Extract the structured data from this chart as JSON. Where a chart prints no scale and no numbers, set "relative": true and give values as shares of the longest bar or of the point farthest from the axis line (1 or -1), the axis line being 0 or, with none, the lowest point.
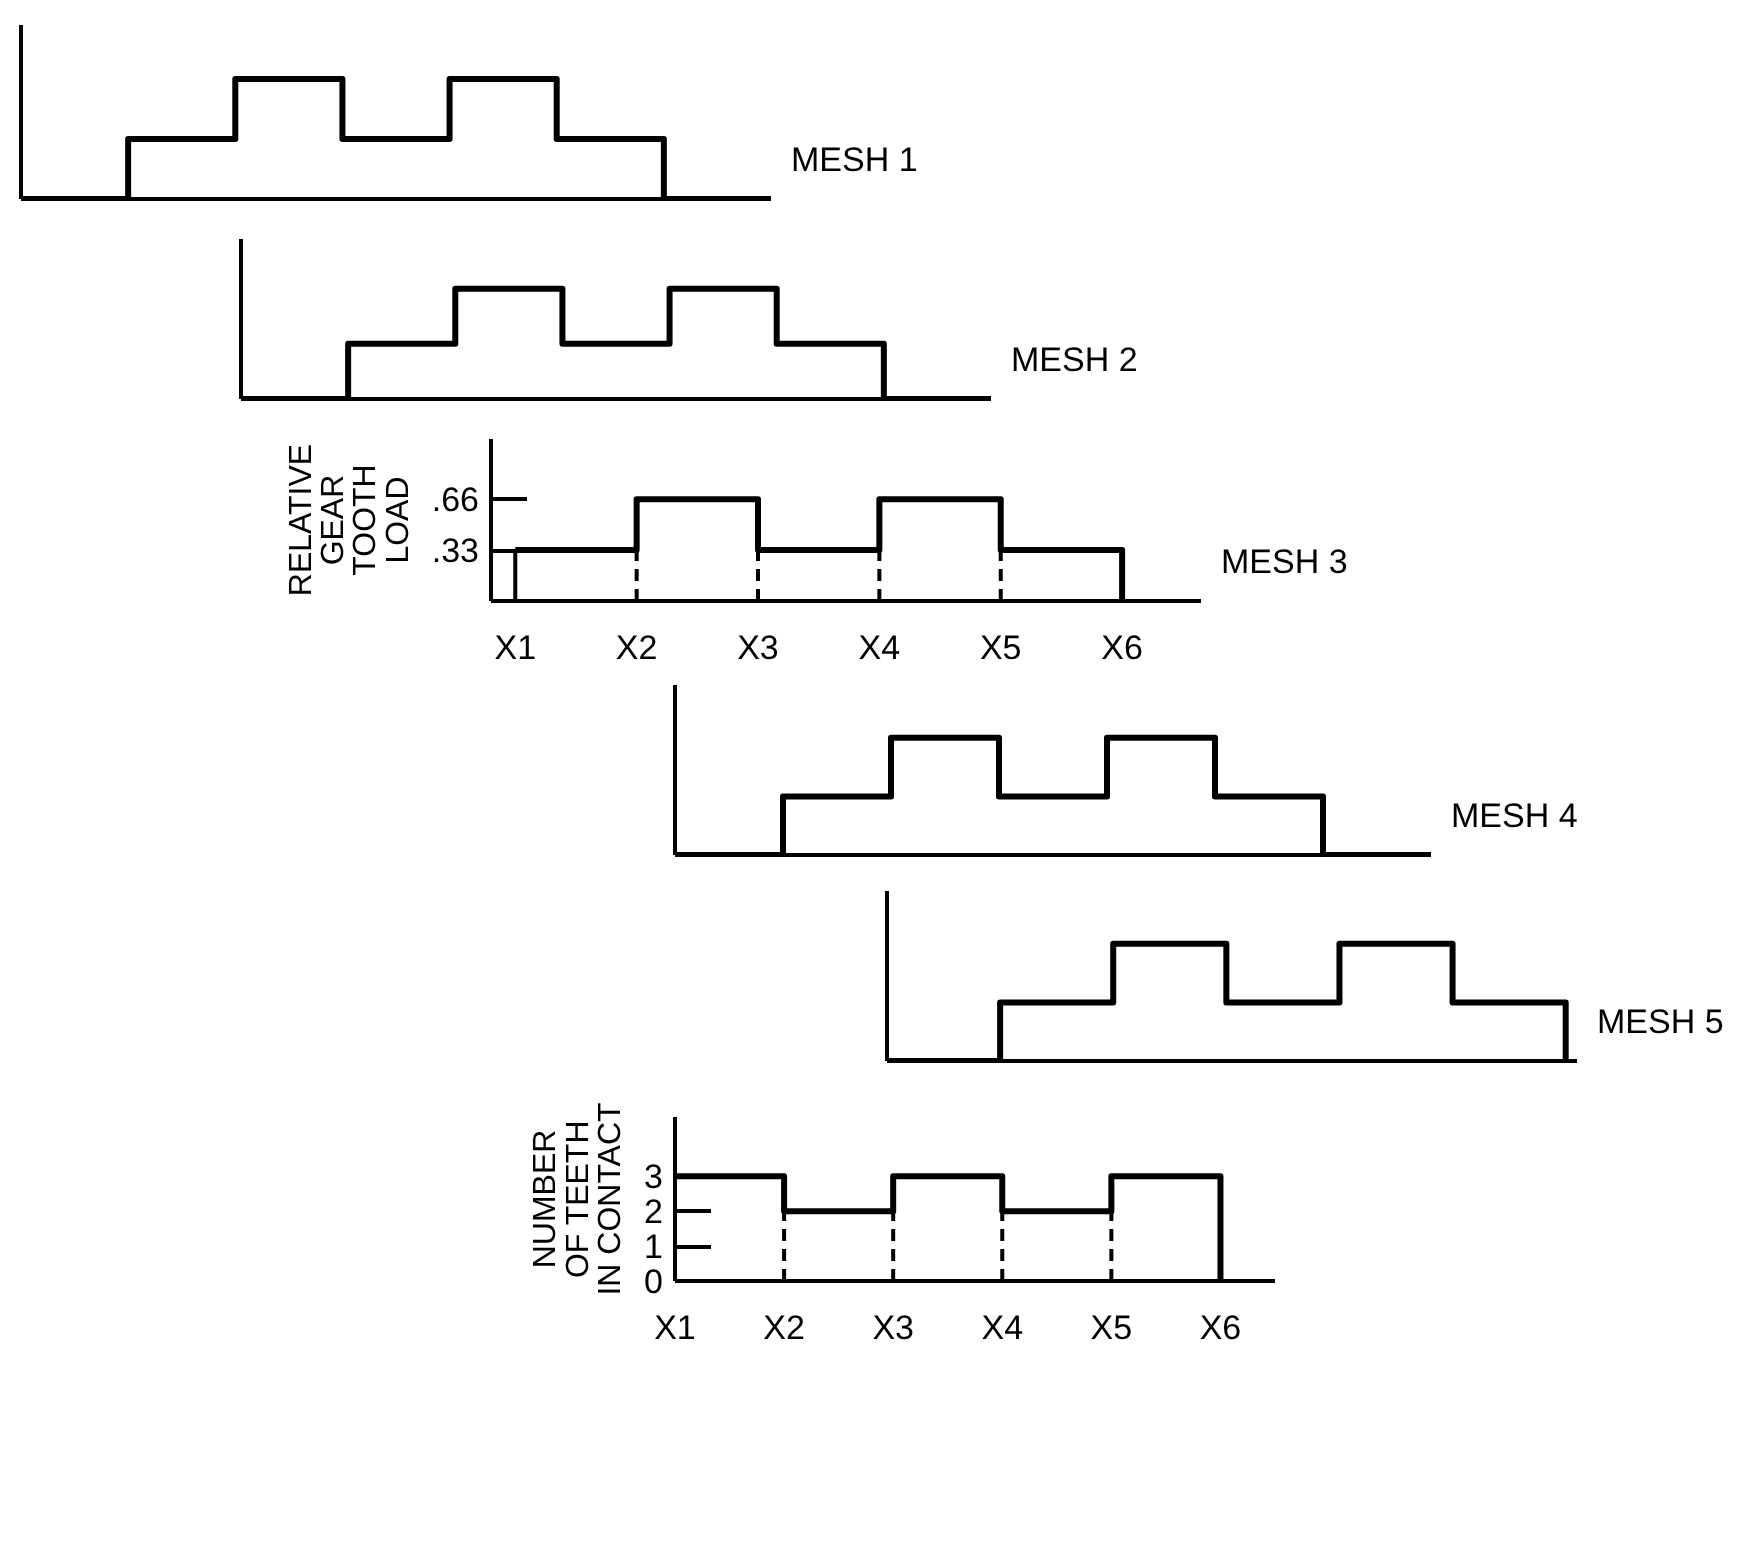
{
  "chart_data": [
    {
      "type": "step",
      "relative": true,
      "categories": [
        null,
        null,
        null,
        null,
        null,
        null,
        null,
        null
      ],
      "series": [
        {
          "name": "MESH 1",
          "color": "#000000",
          "values": [
            0,
            0.5,
            1,
            0.5,
            1,
            0.5,
            0,
            0
          ]
        }
      ]
    },
    {
      "type": "step",
      "relative": true,
      "categories": [
        null,
        null,
        null,
        null,
        null,
        null,
        null,
        null
      ],
      "series": [
        {
          "name": "MESH 2",
          "color": "#000000",
          "values": [
            0,
            0.5,
            1,
            0.5,
            1,
            0.5,
            0,
            0
          ]
        }
      ]
    },
    {
      "type": "step",
      "ylabel": "RELATIVE\nGEAR\nTOOTH\nLOAD",
      "categories": [
        "X1",
        "X2",
        "X3",
        "X4",
        "X5",
        "X6"
      ],
      "ylim": [
        0,
        1.05
      ],
      "yticks": [
        {
          "value": 0.33,
          "label": ".33"
        },
        {
          "value": 0.66,
          "label": ".66"
        }
      ],
      "ref_lines": [
        {
          "axis": "x",
          "value": "X1",
          "line_style": "solid"
        },
        {
          "axis": "x",
          "value": "X2",
          "line_style": "dashed"
        },
        {
          "axis": "x",
          "value": "X3",
          "line_style": "dashed"
        },
        {
          "axis": "x",
          "value": "X4",
          "line_style": "dashed"
        },
        {
          "axis": "x",
          "value": "X5",
          "line_style": "dashed"
        }
      ],
      "series": [
        {
          "name": "MESH 3",
          "color": "#000000",
          "values": [
            0.33,
            0.66,
            0.33,
            0.66,
            0.33,
            0
          ]
        }
      ]
    },
    {
      "type": "step",
      "relative": true,
      "categories": [
        null,
        null,
        null,
        null,
        null,
        null,
        null,
        null
      ],
      "series": [
        {
          "name": "MESH 4",
          "color": "#000000",
          "values": [
            0,
            0.5,
            1,
            0.5,
            1,
            0.5,
            0,
            0
          ]
        }
      ]
    },
    {
      "type": "step",
      "relative": true,
      "categories": [
        null,
        null,
        null,
        null,
        null,
        null,
        null
      ],
      "series": [
        {
          "name": "MESH 5",
          "color": "#000000",
          "values": [
            0,
            0.5,
            1,
            0.5,
            1,
            0.5,
            0
          ]
        }
      ]
    },
    {
      "type": "step",
      "ylabel": "NUMBER\nOF TEETH\nIN CONTACT",
      "categories": [
        "X1",
        "X2",
        "X3",
        "X4",
        "X5",
        "X6"
      ],
      "ylim": [
        0,
        4.7
      ],
      "yticks": [
        0,
        1,
        2,
        3
      ],
      "ref_lines": [
        {
          "axis": "x",
          "value": "X2",
          "line_style": "dashed"
        },
        {
          "axis": "x",
          "value": "X3",
          "line_style": "dashed"
        },
        {
          "axis": "x",
          "value": "X4",
          "line_style": "dashed"
        },
        {
          "axis": "x",
          "value": "X5",
          "line_style": "dashed"
        }
      ],
      "series": [
        {
          "color": "#000000",
          "values": [
            3,
            2,
            3,
            2,
            3,
            0
          ]
        }
      ]
    }
  ]
}
